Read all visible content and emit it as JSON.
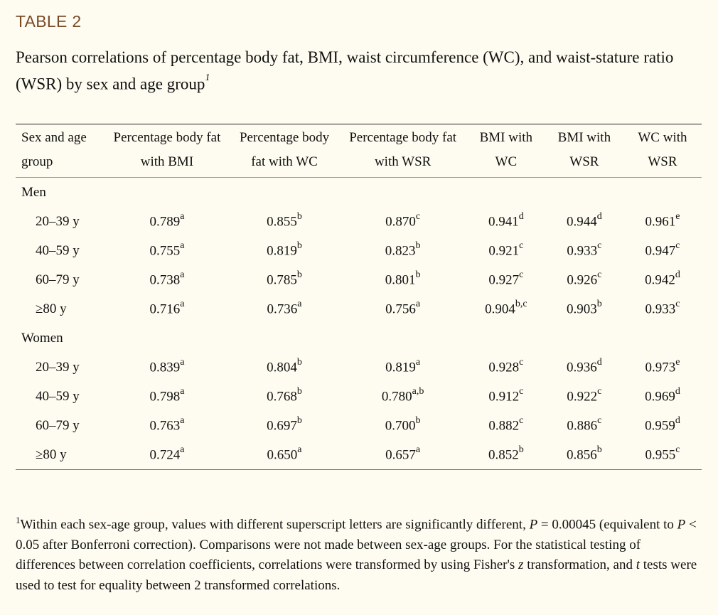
{
  "table_label": "TABLE 2",
  "caption": "Pearson correlations of percentage body fat, BMI, waist circumference (WC), and waist-stature ratio (WSR) by sex and age group",
  "caption_footnote_mark": "1",
  "columns": [
    "Sex and age group",
    "Percentage body fat with BMI",
    "Percentage body fat with WC",
    "Percentage body fat with WSR",
    "BMI with WC",
    "BMI with WSR",
    "WC with WSR"
  ],
  "groups": [
    {
      "name": "Men",
      "rows": [
        {
          "age": "20–39 y",
          "cells": [
            {
              "v": "0.789",
              "s": "a"
            },
            {
              "v": "0.855",
              "s": "b"
            },
            {
              "v": "0.870",
              "s": "c"
            },
            {
              "v": "0.941",
              "s": "d"
            },
            {
              "v": "0.944",
              "s": "d"
            },
            {
              "v": "0.961",
              "s": "e"
            }
          ]
        },
        {
          "age": "40–59 y",
          "cells": [
            {
              "v": "0.755",
              "s": "a"
            },
            {
              "v": "0.819",
              "s": "b"
            },
            {
              "v": "0.823",
              "s": "b"
            },
            {
              "v": "0.921",
              "s": "c"
            },
            {
              "v": "0.933",
              "s": "c"
            },
            {
              "v": "0.947",
              "s": "c"
            }
          ]
        },
        {
          "age": "60–79 y",
          "cells": [
            {
              "v": "0.738",
              "s": "a"
            },
            {
              "v": "0.785",
              "s": "b"
            },
            {
              "v": "0.801",
              "s": "b"
            },
            {
              "v": "0.927",
              "s": "c"
            },
            {
              "v": "0.926",
              "s": "c"
            },
            {
              "v": "0.942",
              "s": "d"
            }
          ]
        },
        {
          "age": "≥80 y",
          "cells": [
            {
              "v": "0.716",
              "s": "a"
            },
            {
              "v": "0.736",
              "s": "a"
            },
            {
              "v": "0.756",
              "s": "a"
            },
            {
              "v": "0.904",
              "s": "b,c"
            },
            {
              "v": "0.903",
              "s": "b"
            },
            {
              "v": "0.933",
              "s": "c"
            }
          ]
        }
      ]
    },
    {
      "name": "Women",
      "rows": [
        {
          "age": "20–39 y",
          "cells": [
            {
              "v": "0.839",
              "s": "a"
            },
            {
              "v": "0.804",
              "s": "b"
            },
            {
              "v": "0.819",
              "s": "a"
            },
            {
              "v": "0.928",
              "s": "c"
            },
            {
              "v": "0.936",
              "s": "d"
            },
            {
              "v": "0.973",
              "s": "e"
            }
          ]
        },
        {
          "age": "40–59 y",
          "cells": [
            {
              "v": "0.798",
              "s": "a"
            },
            {
              "v": "0.768",
              "s": "b"
            },
            {
              "v": "0.780",
              "s": "a,b"
            },
            {
              "v": "0.912",
              "s": "c"
            },
            {
              "v": "0.922",
              "s": "c"
            },
            {
              "v": "0.969",
              "s": "d"
            }
          ]
        },
        {
          "age": "60–79 y",
          "cells": [
            {
              "v": "0.763",
              "s": "a"
            },
            {
              "v": "0.697",
              "s": "b"
            },
            {
              "v": "0.700",
              "s": "b"
            },
            {
              "v": "0.882",
              "s": "c"
            },
            {
              "v": "0.886",
              "s": "c"
            },
            {
              "v": "0.959",
              "s": "d"
            }
          ]
        },
        {
          "age": "≥80 y",
          "cells": [
            {
              "v": "0.724",
              "s": "a"
            },
            {
              "v": "0.650",
              "s": "a"
            },
            {
              "v": "0.657",
              "s": "a"
            },
            {
              "v": "0.852",
              "s": "b"
            },
            {
              "v": "0.856",
              "s": "b"
            },
            {
              "v": "0.955",
              "s": "c"
            }
          ]
        }
      ]
    }
  ],
  "footnote": {
    "mark": "1",
    "part1": "Within each sex-age group, values with different superscript letters are significantly different, ",
    "p1": "P",
    "part2": " = 0.00045 (equivalent to ",
    "p2": "P",
    "part3": " < 0.05 after Bonferroni correction). Comparisons were not made between sex-age groups. For the statistical testing of differences between correlation coefficients, correlations were transformed by using Fisher's ",
    "z": "z",
    "part4": " transformation, and ",
    "t": "t",
    "part5": " tests were used to test for equality between 2 transformed correlations."
  }
}
